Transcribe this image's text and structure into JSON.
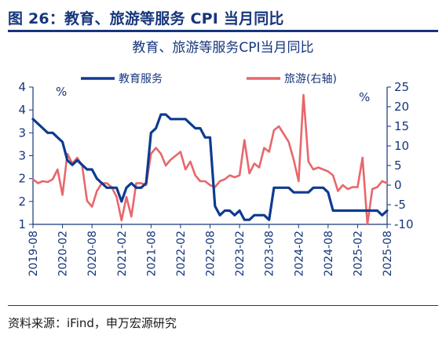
{
  "header": {
    "figure_title": "图 26：教育、旅游等服务 CPI 当月同比",
    "chart_title": "教育、旅游等服务CPI当月同比"
  },
  "footer": {
    "source": "资料来源：iFind，申万宏源研究"
  },
  "colors": {
    "navy": "#16367c",
    "education": "#0e3b91",
    "tourism": "#e8676b"
  },
  "chart_data": {
    "type": "line",
    "title": "教育、旅游等服务CPI当月同比",
    "left_unit": "%",
    "right_unit": "%",
    "legend_position": "top",
    "grid": false,
    "x_tick_labels": [
      "2019-08",
      "2020-02",
      "2020-08",
      "2021-02",
      "2021-08",
      "2022-02",
      "2022-08",
      "2023-02",
      "2023-08",
      "2024-02",
      "2024-08",
      "2025-02",
      "2025-08"
    ],
    "y_left": {
      "ylim": [
        1,
        4
      ],
      "tick_values": [
        1,
        1.5,
        2,
        2.5,
        3,
        3.5,
        4
      ],
      "tick_labels": [
        "1",
        "2",
        "2",
        "3",
        "3",
        "4",
        "4"
      ]
    },
    "y_right": {
      "ylim": [
        -10,
        25
      ],
      "ticks": [
        -10,
        -5,
        0,
        5,
        10,
        15,
        20,
        25
      ]
    },
    "x": [
      "2019-08",
      "2019-09",
      "2019-10",
      "2019-11",
      "2019-12",
      "2020-01",
      "2020-02",
      "2020-03",
      "2020-04",
      "2020-05",
      "2020-06",
      "2020-07",
      "2020-08",
      "2020-09",
      "2020-10",
      "2020-11",
      "2020-12",
      "2021-01",
      "2021-02",
      "2021-03",
      "2021-04",
      "2021-05",
      "2021-06",
      "2021-07",
      "2021-08",
      "2021-09",
      "2021-10",
      "2021-11",
      "2021-12",
      "2022-01",
      "2022-02",
      "2022-03",
      "2022-04",
      "2022-05",
      "2022-06",
      "2022-07",
      "2022-08",
      "2022-09",
      "2022-10",
      "2022-11",
      "2022-12",
      "2023-01",
      "2023-02",
      "2023-03",
      "2023-04",
      "2023-05",
      "2023-06",
      "2023-07",
      "2023-08",
      "2023-09",
      "2023-10",
      "2023-11",
      "2023-12",
      "2024-01",
      "2024-02",
      "2024-03",
      "2024-04",
      "2024-05",
      "2024-06",
      "2024-07",
      "2024-08",
      "2024-09",
      "2024-10",
      "2024-11",
      "2024-12",
      "2025-01",
      "2025-02",
      "2025-03",
      "2025-04",
      "2025-05",
      "2025-06",
      "2025-07",
      "2025-08"
    ],
    "series": [
      {
        "name": "教育服务",
        "axis": "left",
        "color": "#0e3b91",
        "values": [
          3.3,
          3.2,
          3.1,
          3.0,
          3.0,
          2.9,
          2.8,
          2.4,
          2.3,
          2.4,
          2.3,
          2.2,
          2.2,
          2.0,
          1.9,
          1.8,
          1.8,
          1.8,
          1.5,
          1.8,
          1.9,
          1.8,
          1.8,
          1.9,
          3.0,
          3.1,
          3.4,
          3.4,
          3.3,
          3.3,
          3.3,
          3.3,
          3.2,
          3.1,
          3.1,
          2.9,
          2.9,
          1.4,
          1.2,
          1.3,
          1.3,
          1.2,
          1.3,
          1.1,
          1.1,
          1.2,
          1.2,
          1.2,
          1.1,
          1.8,
          1.8,
          1.8,
          1.8,
          1.7,
          1.7,
          1.7,
          1.7,
          1.8,
          1.8,
          1.8,
          1.7,
          1.3,
          1.3,
          1.3,
          1.3,
          1.3,
          1.3,
          1.3,
          1.3,
          1.3,
          1.3,
          1.2,
          1.3
        ]
      },
      {
        "name": "旅游(右轴)",
        "axis": "right",
        "color": "#e8676b",
        "values": [
          1.5,
          0.5,
          1.0,
          0.8,
          1.5,
          4.0,
          -2.5,
          8.0,
          5.5,
          7.0,
          5.0,
          -4.0,
          -5.5,
          -1.5,
          0.5,
          0.5,
          -0.5,
          -3.0,
          -9.0,
          -3.0,
          -8.0,
          0.5,
          0.5,
          0.0,
          8.0,
          9.5,
          8.0,
          5.0,
          6.5,
          7.5,
          8.5,
          4.0,
          6.0,
          2.5,
          1.0,
          1.0,
          0.0,
          -0.5,
          1.0,
          1.5,
          2.5,
          2.0,
          2.5,
          11.5,
          3.0,
          5.5,
          4.5,
          9.5,
          8.5,
          14.0,
          15.0,
          13.0,
          11.0,
          6.5,
          1.0,
          23.0,
          6.0,
          4.0,
          4.5,
          4.0,
          3.5,
          2.5,
          -1.5,
          0.0,
          -1.0,
          -0.5,
          -0.5,
          7.0,
          -10.0,
          -1.0,
          -0.5,
          1.0,
          0.5
        ]
      }
    ]
  }
}
